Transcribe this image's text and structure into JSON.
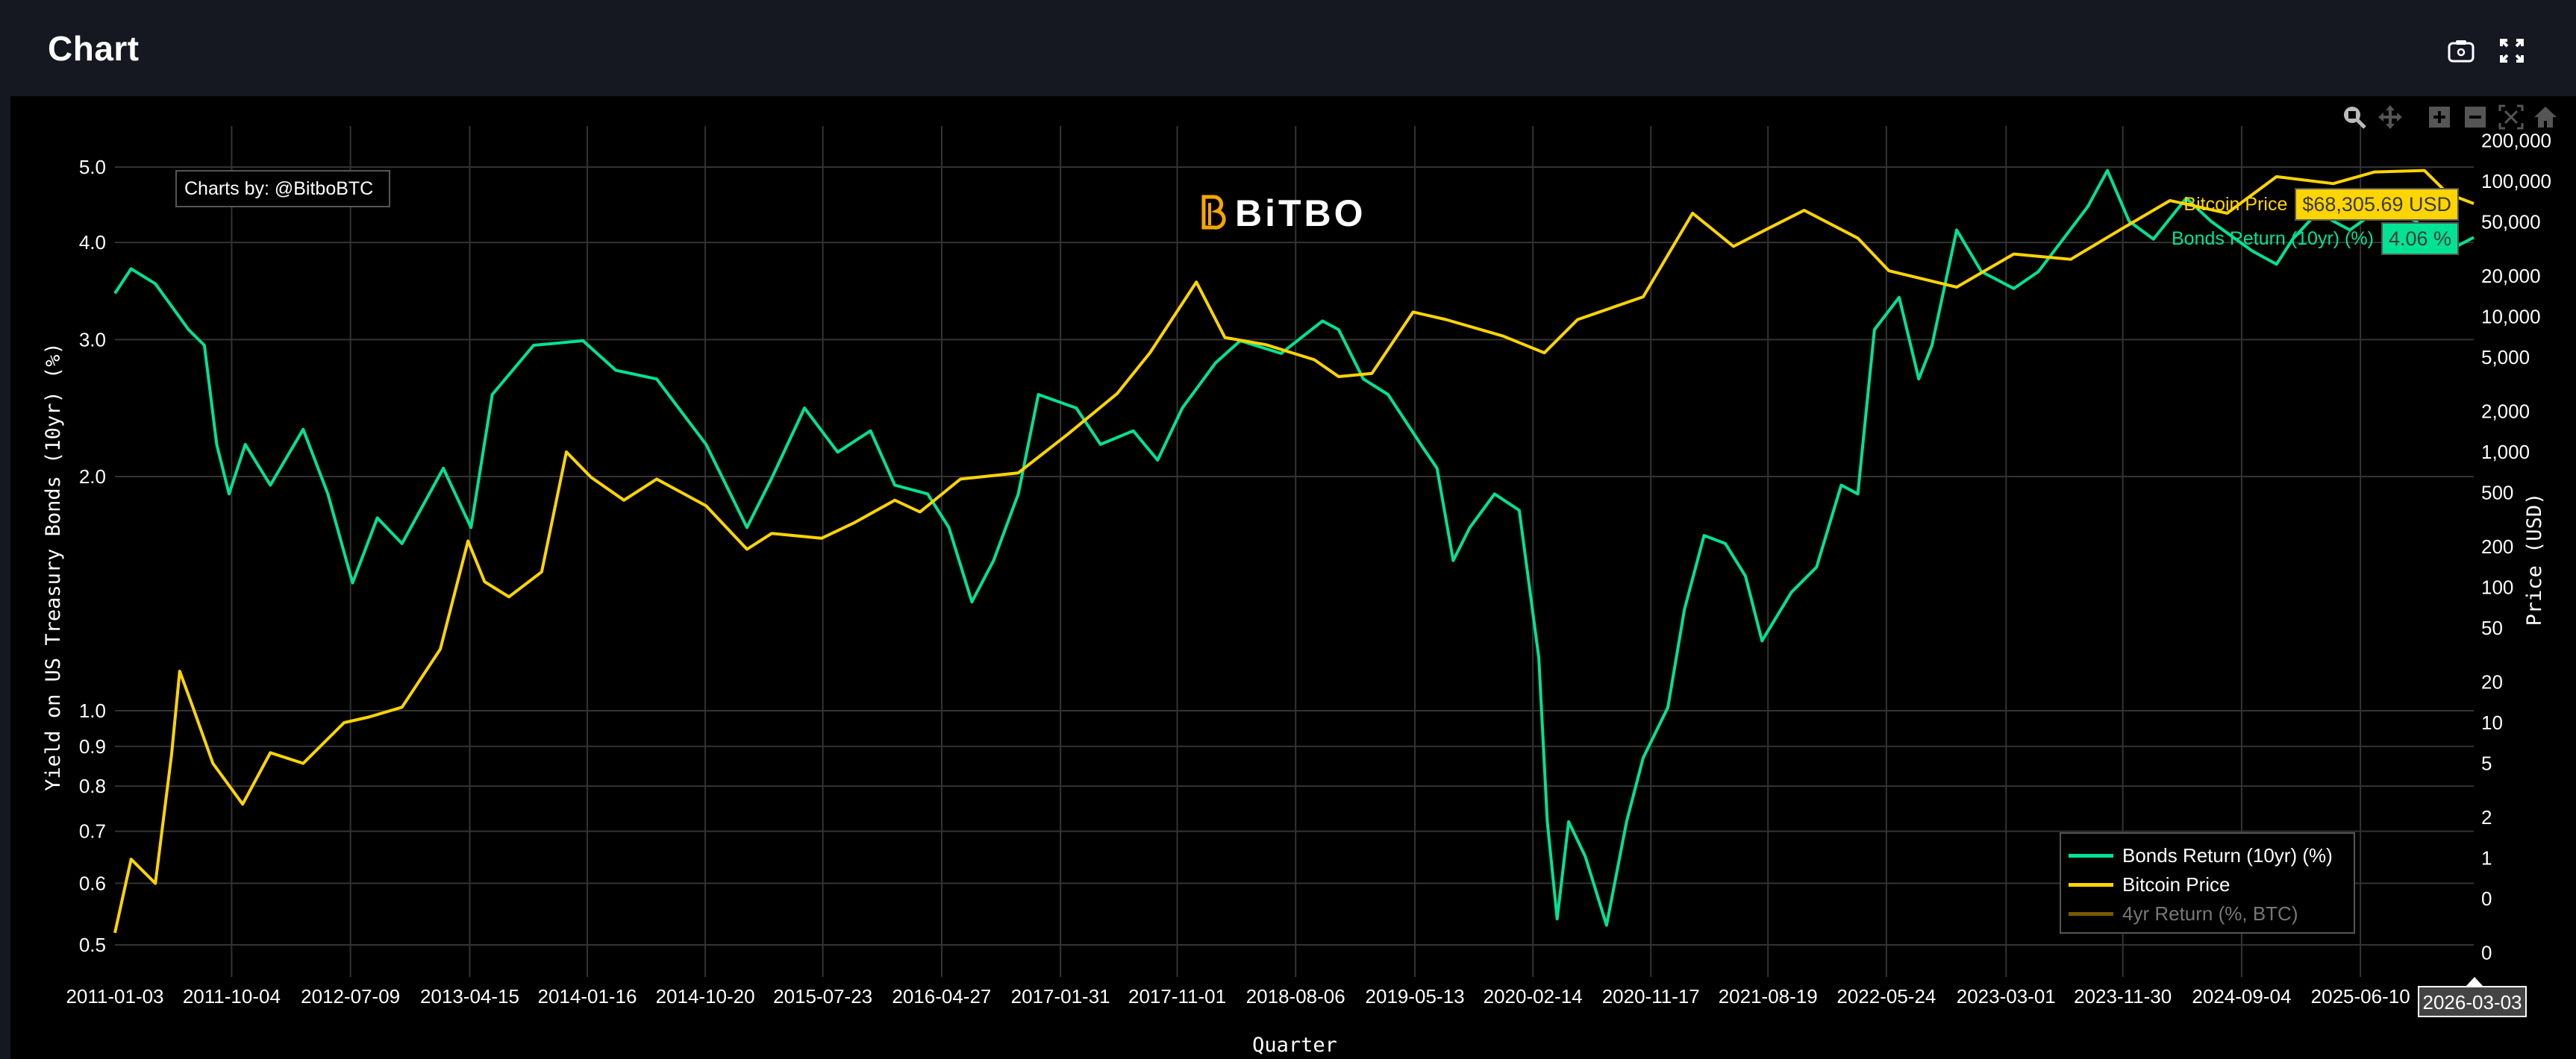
{
  "header": {
    "title": "Chart",
    "icons": [
      "camera-icon",
      "fullscreen-icon"
    ]
  },
  "modebar": {
    "icons": [
      "zoom-icon",
      "pan-icon",
      "zoom-in-icon",
      "zoom-out-icon",
      "autoscale-icon",
      "home-icon"
    ]
  },
  "credit": "Charts by: @BitboBTC",
  "logo": "BiTBO",
  "annotations": {
    "btc_label": "Bitcoin Price",
    "btc_value": "$68,305.69 USD",
    "bonds_label": "Bonds Return (10yr) (%)",
    "bonds_value": "4.06 %"
  },
  "hover_date": "2026-03-03",
  "colors": {
    "bonds": "#00E394",
    "btc": "#FFD500",
    "btc4yr": "#7a5a00",
    "grid": "#333333"
  },
  "chart_data": {
    "type": "line",
    "xlabel": "Quarter",
    "ylabel_left": "Yield on US Treasury Bonds (10yr) (%)",
    "ylabel_right": "Price (USD)",
    "x_range": [
      "2011-01-03",
      "2026-03-03"
    ],
    "x_ticks": [
      "2011-01-03",
      "2011-10-04",
      "2012-07-09",
      "2013-04-15",
      "2014-01-16",
      "2014-10-20",
      "2015-07-23",
      "2016-04-27",
      "2017-01-31",
      "2017-11-01",
      "2018-08-06",
      "2019-05-13",
      "2020-02-14",
      "2020-11-17",
      "2021-08-19",
      "2022-05-24",
      "2023-03-01",
      "2023-11-30",
      "2024-09-04",
      "2025-06-10"
    ],
    "y_left": {
      "scale": "log",
      "range": [
        0.5,
        5.0
      ],
      "ticks": [
        5.0,
        4.0,
        3.0,
        2.0,
        1.0,
        0.9,
        0.8,
        0.7,
        0.6,
        0.5
      ],
      "tick_labels": [
        "5.0",
        "4.0",
        "3.0",
        "2.0",
        "1.0",
        "0.9",
        "0.8",
        "0.7",
        "0.6",
        "0.5"
      ]
    },
    "y_right": {
      "scale": "log",
      "ticks": [
        200000,
        100000,
        50000,
        20000,
        10000,
        5000,
        2000,
        1000,
        500,
        200,
        100,
        50,
        20,
        10,
        5,
        2,
        1,
        0.5,
        0.2
      ],
      "tick_labels": [
        "200,000",
        "100,000",
        "50,000",
        "20,000",
        "10,000",
        "5,000",
        "2,000",
        "1,000",
        "500",
        "200",
        "100",
        "50",
        "20",
        "10",
        "5",
        "2",
        "1",
        "0",
        "0"
      ]
    },
    "grid": true,
    "legend": {
      "placement": "bottom-right",
      "entries": [
        "Bonds Return (10yr) (%)",
        "Bitcoin Price",
        "4yr Return (%, BTC)"
      ],
      "hidden": [
        "4yr Return (%, BTC)"
      ]
    },
    "series": [
      {
        "name": "Bonds Return (10yr) (%)",
        "axis": "left",
        "x": [
          "2011-01-03",
          "2011-02-10",
          "2011-04-08",
          "2011-06-25",
          "2011-08-01",
          "2011-08-30",
          "2011-09-28",
          "2011-11-05",
          "2012-01-03",
          "2012-03-20",
          "2012-05-17",
          "2012-07-14",
          "2012-09-10",
          "2012-11-07",
          "2013-02-12",
          "2013-04-18",
          "2013-06-07",
          "2013-09-12",
          "2014-01-06",
          "2014-03-24",
          "2014-06-28",
          "2014-10-22",
          "2015-01-26",
          "2015-03-25",
          "2015-06-10",
          "2015-08-27",
          "2015-11-12",
          "2016-01-08",
          "2016-03-25",
          "2016-05-14",
          "2016-07-07",
          "2016-08-27",
          "2016-10-24",
          "2016-12-10",
          "2017-03-09",
          "2017-05-05",
          "2017-07-21",
          "2017-09-16",
          "2017-11-13",
          "2018-01-30",
          "2018-03-29",
          "2018-07-03",
          "2018-10-08",
          "2018-11-15",
          "2019-01-12",
          "2019-03-11",
          "2019-05-27",
          "2019-07-04",
          "2019-08-11",
          "2019-09-19",
          "2019-11-16",
          "2020-01-13",
          "2020-02-28",
          "2020-03-19",
          "2020-04-11",
          "2020-05-08",
          "2020-06-16",
          "2020-08-05",
          "2020-09-21",
          "2020-10-30",
          "2020-12-27",
          "2021-02-04",
          "2021-03-22",
          "2021-05-11",
          "2021-06-27",
          "2021-08-05",
          "2021-10-13",
          "2021-12-11",
          "2022-02-07",
          "2022-03-18",
          "2022-04-26",
          "2022-06-23",
          "2022-08-08",
          "2022-09-08",
          "2022-11-05",
          "2023-01-02",
          "2023-03-19",
          "2023-05-16",
          "2023-07-13",
          "2023-09-09",
          "2023-10-25",
          "2023-12-15",
          "2024-02-10",
          "2024-04-27",
          "2024-06-24",
          "2024-09-29",
          "2024-11-25",
          "2025-01-02",
          "2025-03-01",
          "2025-05-16",
          "2025-08-01",
          "2025-10-18",
          "2026-01-01",
          "2026-03-03"
        ],
        "y": [
          3.44,
          3.7,
          3.54,
          3.09,
          2.95,
          2.2,
          1.9,
          2.2,
          1.95,
          2.3,
          1.9,
          1.46,
          1.77,
          1.64,
          2.05,
          1.72,
          2.55,
          2.95,
          2.99,
          2.74,
          2.67,
          2.2,
          1.72,
          1.99,
          2.45,
          2.15,
          2.29,
          1.95,
          1.9,
          1.72,
          1.38,
          1.56,
          1.9,
          2.55,
          2.45,
          2.2,
          2.29,
          2.1,
          2.45,
          2.8,
          2.99,
          2.88,
          3.17,
          3.09,
          2.67,
          2.55,
          2.2,
          2.05,
          1.56,
          1.72,
          1.9,
          1.81,
          1.17,
          0.72,
          0.54,
          0.72,
          0.65,
          0.53,
          0.72,
          0.87,
          1.01,
          1.35,
          1.68,
          1.64,
          1.49,
          1.23,
          1.42,
          1.53,
          1.95,
          1.9,
          3.09,
          3.4,
          2.67,
          2.95,
          4.15,
          3.67,
          3.49,
          3.67,
          4.04,
          4.45,
          4.95,
          4.26,
          4.04,
          4.56,
          4.26,
          3.9,
          3.75,
          4.04,
          4.37,
          4.15,
          4.45,
          4.26,
          3.9,
          4.06
        ]
      },
      {
        "name": "Bitcoin Price",
        "axis": "right",
        "x": [
          "2011-01-03",
          "2011-02-10",
          "2011-04-08",
          "2011-05-16",
          "2011-06-04",
          "2011-07-05",
          "2011-08-21",
          "2011-10-30",
          "2012-01-03",
          "2012-03-20",
          "2012-06-24",
          "2012-08-21",
          "2012-11-07",
          "2013-02-05",
          "2013-04-11",
          "2013-05-20",
          "2013-07-16",
          "2013-10-01",
          "2013-11-28",
          "2014-01-25",
          "2014-04-12",
          "2014-06-28",
          "2014-10-22",
          "2015-01-26",
          "2015-03-25",
          "2015-07-20",
          "2015-10-05",
          "2016-01-08",
          "2016-03-07",
          "2016-06-10",
          "2016-10-24",
          "2017-02-17",
          "2017-06-13",
          "2017-08-29",
          "2017-12-16",
          "2018-02-21",
          "2018-05-28",
          "2018-09-19",
          "2018-11-15",
          "2019-02-01",
          "2019-05-09",
          "2019-07-25",
          "2019-12-05",
          "2020-03-12",
          "2020-05-29",
          "2020-10-30",
          "2021-02-23",
          "2021-05-30",
          "2021-08-15",
          "2021-11-12",
          "2022-03-18",
          "2022-05-30",
          "2022-11-05",
          "2023-03-19",
          "2023-07-31",
          "2023-11-25",
          "2024-03-20",
          "2024-08-01",
          "2024-11-25",
          "2025-04-07",
          "2025-07-13",
          "2025-11-07",
          "2026-01-01",
          "2026-03-03"
        ],
        "y": [
          0.28,
          0.98,
          0.65,
          5.8,
          24,
          13,
          5,
          2.5,
          6,
          5,
          10,
          11,
          13,
          35,
          220,
          110,
          85,
          130,
          1000,
          650,
          440,
          630,
          400,
          191,
          250,
          230,
          300,
          440,
          360,
          630,
          700,
          1350,
          2700,
          5400,
          18000,
          7000,
          6200,
          4800,
          3600,
          3800,
          10800,
          9500,
          7200,
          5400,
          9500,
          14000,
          58000,
          33000,
          44000,
          61000,
          38000,
          21800,
          16500,
          29000,
          26500,
          44000,
          72000,
          58000,
          108000,
          96000,
          117000,
          120000,
          81000,
          68305.69
        ]
      }
    ]
  }
}
